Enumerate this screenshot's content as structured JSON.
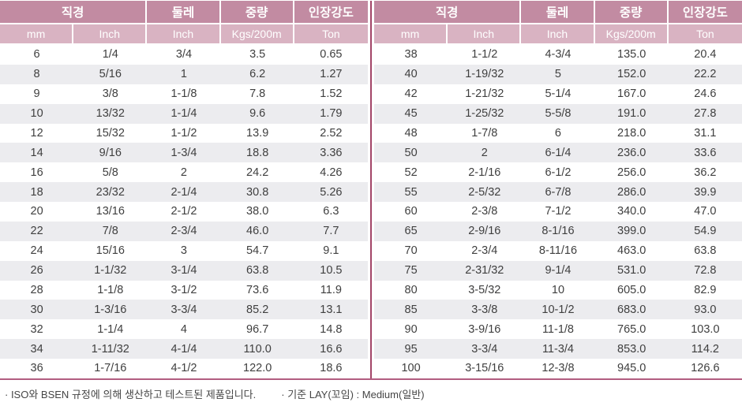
{
  "table": {
    "headers": {
      "diameter": "직경",
      "circumference": "둘레",
      "weight": "중량",
      "tensile_strength": "인장강도",
      "sub": [
        "mm",
        "Inch",
        "Inch",
        "Kgs/200m",
        "Ton"
      ]
    },
    "left_rows": [
      [
        "6",
        "1/4",
        "3/4",
        "3.5",
        "0.65"
      ],
      [
        "8",
        "5/16",
        "1",
        "6.2",
        "1.27"
      ],
      [
        "9",
        "3/8",
        "1-1/8",
        "7.8",
        "1.52"
      ],
      [
        "10",
        "13/32",
        "1-1/4",
        "9.6",
        "1.79"
      ],
      [
        "12",
        "15/32",
        "1-1/2",
        "13.9",
        "2.52"
      ],
      [
        "14",
        "9/16",
        "1-3/4",
        "18.8",
        "3.36"
      ],
      [
        "16",
        "5/8",
        "2",
        "24.2",
        "4.26"
      ],
      [
        "18",
        "23/32",
        "2-1/4",
        "30.8",
        "5.26"
      ],
      [
        "20",
        "13/16",
        "2-1/2",
        "38.0",
        "6.3"
      ],
      [
        "22",
        "7/8",
        "2-3/4",
        "46.0",
        "7.7"
      ],
      [
        "24",
        "15/16",
        "3",
        "54.7",
        "9.1"
      ],
      [
        "26",
        "1-1/32",
        "3-1/4",
        "63.8",
        "10.5"
      ],
      [
        "28",
        "1-1/8",
        "3-1/2",
        "73.6",
        "11.9"
      ],
      [
        "30",
        "1-3/16",
        "3-3/4",
        "85.2",
        "13.1"
      ],
      [
        "32",
        "1-1/4",
        "4",
        "96.7",
        "14.8"
      ],
      [
        "34",
        "1-11/32",
        "4-1/4",
        "110.0",
        "16.6"
      ],
      [
        "36",
        "1-7/16",
        "4-1/2",
        "122.0",
        "18.6"
      ]
    ],
    "right_rows": [
      [
        "38",
        "1-1/2",
        "4-3/4",
        "135.0",
        "20.4"
      ],
      [
        "40",
        "1-19/32",
        "5",
        "152.0",
        "22.2"
      ],
      [
        "42",
        "1-21/32",
        "5-1/4",
        "167.0",
        "24.6"
      ],
      [
        "45",
        "1-25/32",
        "5-5/8",
        "191.0",
        "27.8"
      ],
      [
        "48",
        "1-7/8",
        "6",
        "218.0",
        "31.1"
      ],
      [
        "50",
        "2",
        "6-1/4",
        "236.0",
        "33.6"
      ],
      [
        "52",
        "2-1/16",
        "6-1/2",
        "256.0",
        "36.2"
      ],
      [
        "55",
        "2-5/32",
        "6-7/8",
        "286.0",
        "39.9"
      ],
      [
        "60",
        "2-3/8",
        "7-1/2",
        "340.0",
        "47.0"
      ],
      [
        "65",
        "2-9/16",
        "8-1/16",
        "399.0",
        "54.9"
      ],
      [
        "70",
        "2-3/4",
        "8-11/16",
        "463.0",
        "63.8"
      ],
      [
        "75",
        "2-31/32",
        "9-1/4",
        "531.0",
        "72.8"
      ],
      [
        "80",
        "3-5/32",
        "10",
        "605.0",
        "82.9"
      ],
      [
        "85",
        "3-3/8",
        "10-1/2",
        "683.0",
        "93.0"
      ],
      [
        "90",
        "3-9/16",
        "11-1/8",
        "765.0",
        "103.0"
      ],
      [
        "95",
        "3-3/4",
        "11-3/4",
        "853.0",
        "114.2"
      ],
      [
        "100",
        "3-15/16",
        "12-3/8",
        "945.0",
        "126.6"
      ]
    ]
  },
  "footnotes": [
    "· ISO와 BSEN 규정에 의해 생산하고 테스트된 제품입니다.",
    "· 기준 LAY(꼬임) : Medium(일반)"
  ],
  "colors": {
    "header_top": "#c28ba2",
    "header_sub": "#d9b3c2",
    "row_alt": "#ececef",
    "divider": "#a34568",
    "bottom_border": "#b25d80",
    "body_text": "#3f3f3f",
    "header_text": "#ffffff",
    "footer_text": "#454545"
  }
}
